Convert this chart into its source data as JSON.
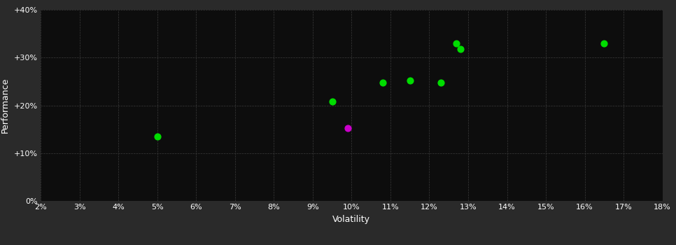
{
  "background_color": "#2a2a2a",
  "plot_bg_color": "#0d0d0d",
  "grid_color": "#3a3a3a",
  "text_color": "#ffffff",
  "xlabel": "Volatility",
  "ylabel": "Performance",
  "xlim": [
    0.02,
    0.18
  ],
  "ylim": [
    0.0,
    0.4
  ],
  "xticks": [
    0.02,
    0.03,
    0.04,
    0.05,
    0.06,
    0.07,
    0.08,
    0.09,
    0.1,
    0.11,
    0.12,
    0.13,
    0.14,
    0.15,
    0.16,
    0.17,
    0.18
  ],
  "yticks": [
    0.0,
    0.1,
    0.2,
    0.3,
    0.4
  ],
  "green_points": [
    [
      0.05,
      0.135
    ],
    [
      0.095,
      0.208
    ],
    [
      0.108,
      0.248
    ],
    [
      0.115,
      0.252
    ],
    [
      0.123,
      0.248
    ],
    [
      0.127,
      0.33
    ],
    [
      0.128,
      0.318
    ],
    [
      0.165,
      0.33
    ]
  ],
  "magenta_points": [
    [
      0.099,
      0.152
    ]
  ],
  "green_color": "#00dd00",
  "magenta_color": "#cc00cc",
  "marker_size": 40,
  "font_size_labels": 9,
  "font_size_ticks": 8
}
